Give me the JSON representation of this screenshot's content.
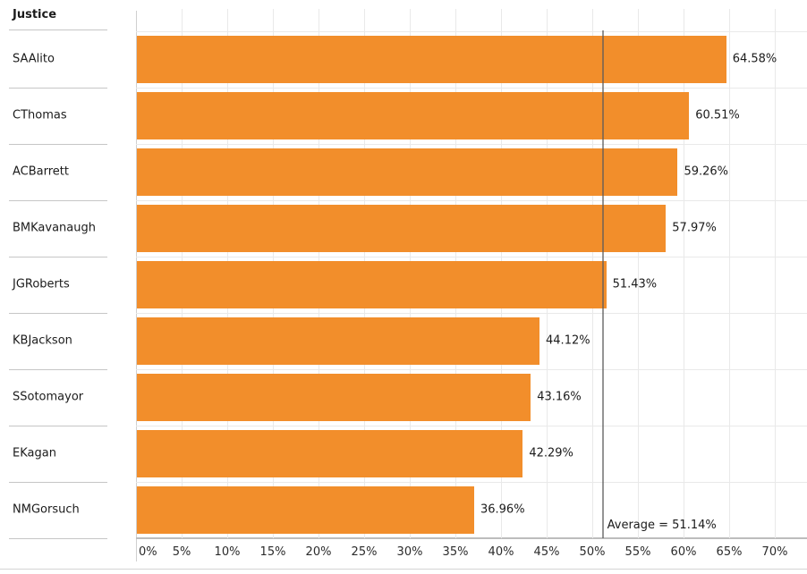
{
  "header": {
    "title": "Justice"
  },
  "chart_data": {
    "type": "bar",
    "orientation": "horizontal",
    "title": "",
    "xlabel": "",
    "ylabel": "Justice",
    "categories": [
      "SAAlito",
      "CThomas",
      "ACBarrett",
      "BMKavanaugh",
      "JGRoberts",
      "KBJackson",
      "SSotomayor",
      "EKagan",
      "NMGorsuch"
    ],
    "values": [
      64.58,
      60.51,
      59.26,
      57.97,
      51.43,
      44.12,
      43.16,
      42.29,
      36.96
    ],
    "value_labels": [
      "64.58%",
      "60.51%",
      "59.26%",
      "57.97%",
      "51.43%",
      "44.12%",
      "43.16%",
      "42.29%",
      "36.96%"
    ],
    "x_ticks": [
      "0%",
      "5%",
      "10%",
      "15%",
      "20%",
      "25%",
      "30%",
      "35%",
      "40%",
      "45%",
      "50%",
      "55%",
      "60%",
      "65%",
      "70%"
    ],
    "x_tick_values": [
      0,
      5,
      10,
      15,
      20,
      25,
      30,
      35,
      40,
      45,
      50,
      55,
      60,
      65,
      70
    ],
    "xlim": [
      0,
      73.5
    ],
    "grid": true,
    "legend": false,
    "reference_line": {
      "value": 51.14,
      "label": "Average = 51.14%"
    }
  },
  "colors": {
    "bar": "#F28E2B",
    "reference_line": "#5A5A5A",
    "gridline": "#E9E9E9",
    "axis_line": "#BDBDBD",
    "divider": "#C6C6C6"
  }
}
